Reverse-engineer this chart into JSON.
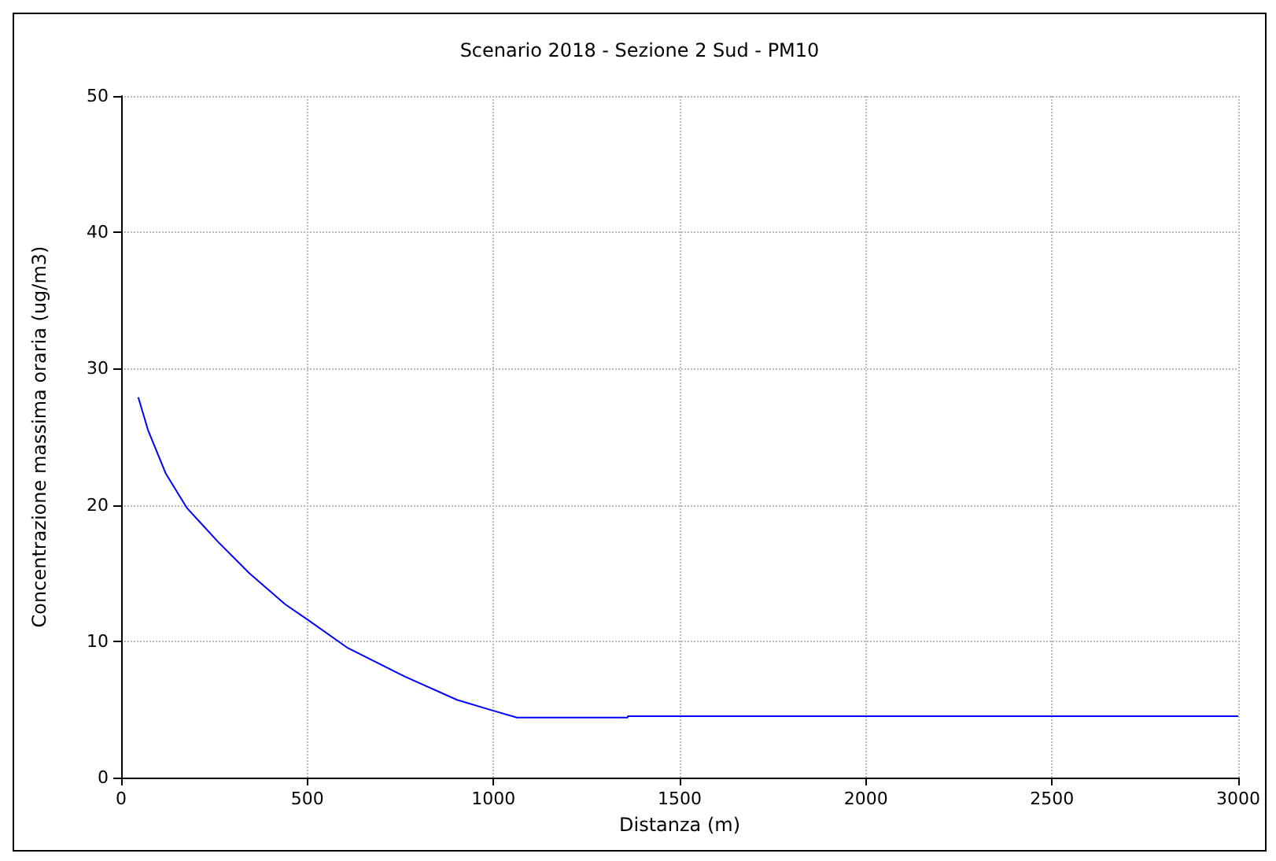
{
  "chart_data": {
    "type": "line",
    "title": "Scenario 2018 - Sezione 2 Sud - PM10",
    "xlabel": "Distanza (m)",
    "ylabel": "Concentrazione massima oraria (ug/m3)",
    "x": [
      46,
      72,
      120,
      176,
      260,
      344,
      441,
      500,
      609,
      763,
      902,
      1000,
      1063,
      1360,
      1361,
      3000
    ],
    "series": [
      {
        "color": "#0000ff",
        "values": [
          27.9,
          25.5,
          22.3,
          19.8,
          17.3,
          15.0,
          12.7,
          11.6,
          9.5,
          7.4,
          5.7,
          4.9,
          4.4,
          4.4,
          4.5,
          4.5
        ]
      }
    ],
    "xlim": [
      0,
      3000
    ],
    "xticks": [
      0,
      500,
      1000,
      1500,
      2000,
      2500,
      3000
    ],
    "ylim": [
      0,
      50
    ],
    "yticks": [
      0,
      10,
      20,
      30,
      40,
      50
    ],
    "grid": true,
    "marker": "none",
    "line_style": "solid"
  }
}
